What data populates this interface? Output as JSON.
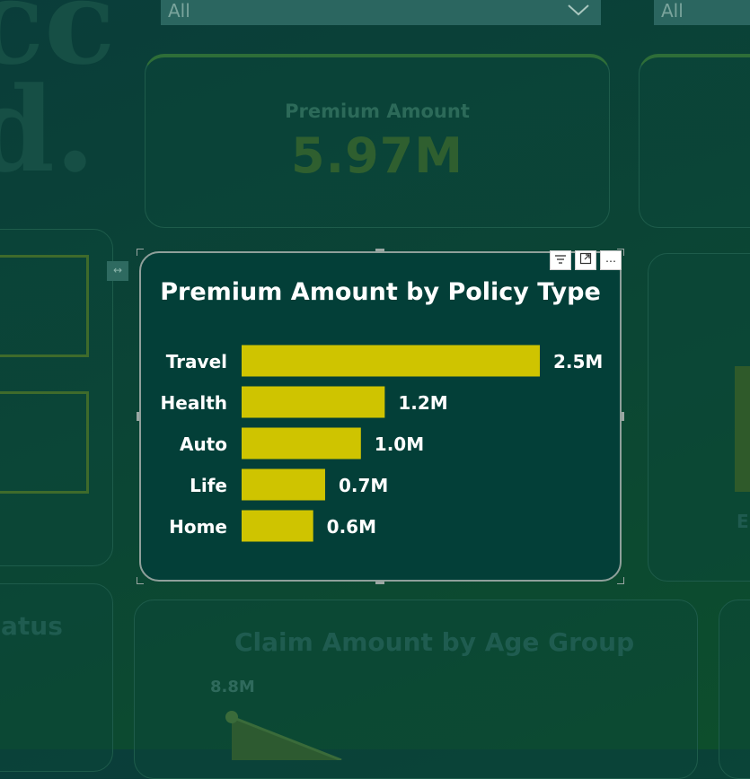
{
  "background": {
    "headline_letters_line1": "cc",
    "headline_letters_line2": "d.",
    "slicers": [
      {
        "value": "All"
      },
      {
        "value": "All"
      }
    ],
    "kpi_card": {
      "label": "Premium Amount",
      "value": "5.97M"
    },
    "status_title": "atus",
    "claim_chart": {
      "title": "Claim Amount by Age Group",
      "value_label": "8.8M"
    },
    "right_partial_label": "E"
  },
  "visual": {
    "header_icons": [
      "filter-icon",
      "focus-mode-icon",
      "more-options-icon"
    ],
    "chart_data": {
      "type": "bar",
      "orientation": "horizontal",
      "title": "Premium Amount by Policy Type",
      "categories": [
        "Travel",
        "Health",
        "Auto",
        "Life",
        "Home"
      ],
      "values": [
        2.5,
        1.2,
        1.0,
        0.7,
        0.6
      ],
      "value_labels": [
        "2.5M",
        "1.2M",
        "1.0M",
        "0.7M",
        "0.6M"
      ],
      "xlim": [
        0,
        2.5
      ],
      "bar_color": "#cfc400",
      "grid": false
    }
  },
  "colors": {
    "background": "#0b4634",
    "visual_background": "#033f38",
    "bar": "#cfc400",
    "text": "#ffffff"
  }
}
